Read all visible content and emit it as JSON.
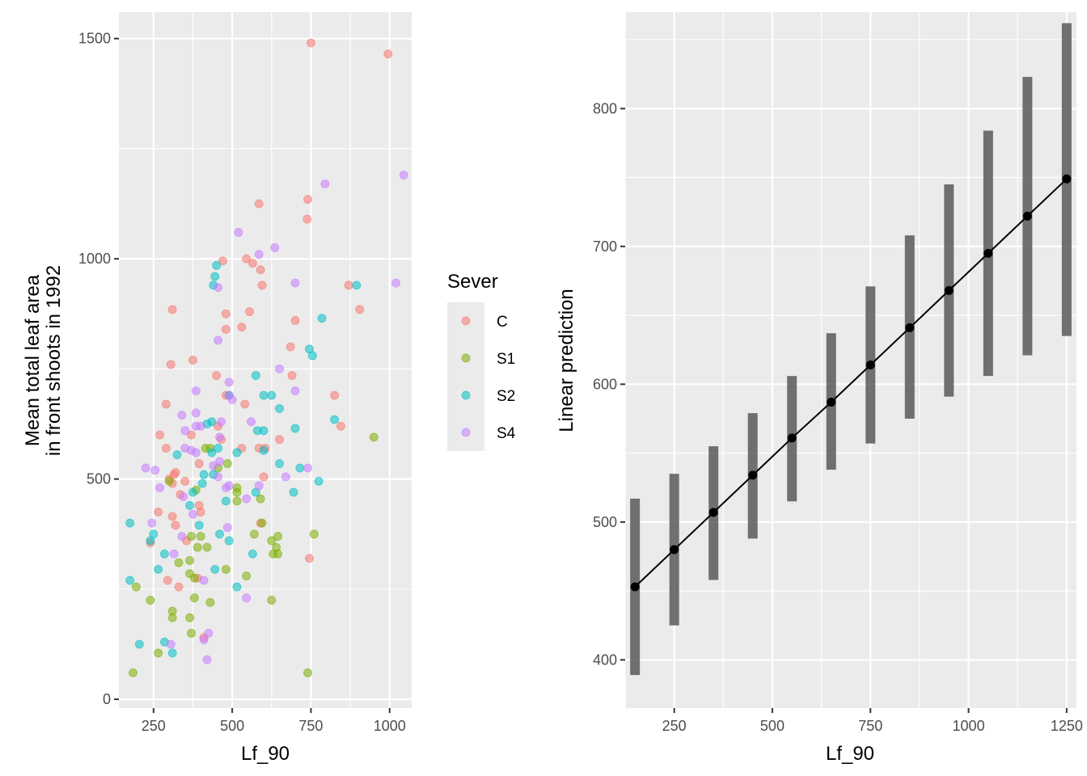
{
  "chart_data": [
    {
      "id": "scatter",
      "type": "scatter",
      "xlabel": "Lf_90",
      "ylabel_lines": [
        "Mean total leaf area",
        "in front shoots in 1992"
      ],
      "xlim": [
        140,
        1070
      ],
      "ylim": [
        -20,
        1560
      ],
      "x_ticks": [
        250,
        500,
        750,
        1000
      ],
      "x_tick_labels": [
        "250",
        "500",
        "750",
        "1000"
      ],
      "y_ticks": [
        0,
        500,
        1000,
        1500
      ],
      "y_tick_labels": [
        "0",
        "500",
        "1000",
        "1500"
      ],
      "point_alpha": 0.55,
      "legend": {
        "title": "Sever",
        "entries": [
          {
            "label": "C",
            "color": "#F8766D"
          },
          {
            "label": "S1",
            "color": "#7CAE00"
          },
          {
            "label": "S2",
            "color": "#00BFC4"
          },
          {
            "label": "S4",
            "color": "#C77CFF"
          }
        ]
      },
      "series": [
        {
          "name": "C",
          "color": "#F8766D",
          "points": [
            [
              750,
              1490
            ],
            [
              995,
              1465
            ],
            [
              740,
              1135
            ],
            [
              585,
              1125
            ],
            [
              738,
              1090
            ],
            [
              545,
              1000
            ],
            [
              565,
              990
            ],
            [
              590,
              975
            ],
            [
              470,
              995
            ],
            [
              310,
              885
            ],
            [
              555,
              880
            ],
            [
              480,
              875
            ],
            [
              595,
              940
            ],
            [
              870,
              940
            ],
            [
              905,
              885
            ],
            [
              700,
              860
            ],
            [
              480,
              840
            ],
            [
              530,
              845
            ],
            [
              685,
              800
            ],
            [
              375,
              770
            ],
            [
              305,
              760
            ],
            [
              690,
              735
            ],
            [
              450,
              735
            ],
            [
              825,
              690
            ],
            [
              480,
              690
            ],
            [
              290,
              670
            ],
            [
              540,
              670
            ],
            [
              845,
              620
            ],
            [
              455,
              620
            ],
            [
              270,
              600
            ],
            [
              370,
              600
            ],
            [
              465,
              590
            ],
            [
              650,
              590
            ],
            [
              290,
              570
            ],
            [
              530,
              570
            ],
            [
              585,
              570
            ],
            [
              605,
              570
            ],
            [
              320,
              515
            ],
            [
              315,
              510
            ],
            [
              300,
              500
            ],
            [
              350,
              495
            ],
            [
              600,
              505
            ],
            [
              335,
              465
            ],
            [
              395,
              535
            ],
            [
              310,
              490
            ],
            [
              395,
              440
            ],
            [
              265,
              425
            ],
            [
              310,
              415
            ],
            [
              400,
              425
            ],
            [
              590,
              400
            ],
            [
              320,
              395
            ],
            [
              240,
              355
            ],
            [
              355,
              360
            ],
            [
              745,
              320
            ],
            [
              295,
              270
            ],
            [
              390,
              275
            ],
            [
              410,
              140
            ],
            [
              330,
              255
            ]
          ]
        },
        {
          "name": "S1",
          "color": "#7CAE00",
          "points": [
            [
              950,
              595
            ],
            [
              485,
              535
            ],
            [
              455,
              525
            ],
            [
              415,
              570
            ],
            [
              430,
              570
            ],
            [
              300,
              495
            ],
            [
              385,
              475
            ],
            [
              515,
              480
            ],
            [
              515,
              470
            ],
            [
              590,
              455
            ],
            [
              515,
              450
            ],
            [
              370,
              370
            ],
            [
              570,
              375
            ],
            [
              400,
              370
            ],
            [
              595,
              400
            ],
            [
              645,
              370
            ],
            [
              625,
              360
            ],
            [
              640,
              345
            ],
            [
              630,
              330
            ],
            [
              645,
              330
            ],
            [
              760,
              375
            ],
            [
              420,
              345
            ],
            [
              390,
              345
            ],
            [
              330,
              310
            ],
            [
              365,
              315
            ],
            [
              365,
              285
            ],
            [
              480,
              295
            ],
            [
              380,
              275
            ],
            [
              545,
              280
            ],
            [
              195,
              255
            ],
            [
              240,
              225
            ],
            [
              310,
              200
            ],
            [
              310,
              185
            ],
            [
              380,
              230
            ],
            [
              365,
              185
            ],
            [
              370,
              150
            ],
            [
              430,
              220
            ],
            [
              265,
              105
            ],
            [
              625,
              225
            ],
            [
              185,
              60
            ],
            [
              740,
              60
            ]
          ]
        },
        {
          "name": "S2",
          "color": "#00BFC4",
          "points": [
            [
              450,
              985
            ],
            [
              440,
              940
            ],
            [
              445,
              960
            ],
            [
              895,
              940
            ],
            [
              785,
              865
            ],
            [
              745,
              795
            ],
            [
              755,
              780
            ],
            [
              575,
              735
            ],
            [
              600,
              690
            ],
            [
              625,
              690
            ],
            [
              490,
              690
            ],
            [
              650,
              660
            ],
            [
              825,
              635
            ],
            [
              580,
              610
            ],
            [
              600,
              610
            ],
            [
              700,
              615
            ],
            [
              420,
              625
            ],
            [
              435,
              630
            ],
            [
              325,
              555
            ],
            [
              455,
              570
            ],
            [
              435,
              560
            ],
            [
              515,
              560
            ],
            [
              600,
              565
            ],
            [
              410,
              510
            ],
            [
              440,
              510
            ],
            [
              715,
              525
            ],
            [
              650,
              535
            ],
            [
              775,
              495
            ],
            [
              405,
              490
            ],
            [
              375,
              470
            ],
            [
              695,
              470
            ],
            [
              575,
              470
            ],
            [
              480,
              450
            ],
            [
              365,
              440
            ],
            [
              175,
              400
            ],
            [
              395,
              395
            ],
            [
              460,
              375
            ],
            [
              250,
              375
            ],
            [
              240,
              360
            ],
            [
              490,
              360
            ],
            [
              565,
              330
            ],
            [
              285,
              330
            ],
            [
              265,
              295
            ],
            [
              445,
              295
            ],
            [
              175,
              270
            ],
            [
              515,
              255
            ],
            [
              285,
              130
            ],
            [
              205,
              125
            ],
            [
              310,
              105
            ]
          ]
        },
        {
          "name": "S4",
          "color": "#C77CFF",
          "points": [
            [
              795,
              1170
            ],
            [
              1045,
              1190
            ],
            [
              520,
              1060
            ],
            [
              585,
              1010
            ],
            [
              635,
              1025
            ],
            [
              1020,
              945
            ],
            [
              700,
              945
            ],
            [
              455,
              935
            ],
            [
              455,
              815
            ],
            [
              490,
              720
            ],
            [
              650,
              750
            ],
            [
              700,
              700
            ],
            [
              385,
              700
            ],
            [
              490,
              690
            ],
            [
              500,
              680
            ],
            [
              340,
              645
            ],
            [
              385,
              650
            ],
            [
              465,
              630
            ],
            [
              560,
              630
            ],
            [
              350,
              570
            ],
            [
              370,
              565
            ],
            [
              385,
              560
            ],
            [
              440,
              530
            ],
            [
              460,
              540
            ],
            [
              255,
              520
            ],
            [
              225,
              525
            ],
            [
              740,
              525
            ],
            [
              455,
              505
            ],
            [
              670,
              505
            ],
            [
              350,
              610
            ],
            [
              460,
              595
            ],
            [
              385,
              620
            ],
            [
              400,
              620
            ],
            [
              490,
              485
            ],
            [
              545,
              455
            ],
            [
              585,
              485
            ],
            [
              480,
              480
            ],
            [
              270,
              480
            ],
            [
              345,
              460
            ],
            [
              375,
              420
            ],
            [
              245,
              400
            ],
            [
              485,
              390
            ],
            [
              340,
              370
            ],
            [
              315,
              330
            ],
            [
              410,
              270
            ],
            [
              545,
              230
            ],
            [
              425,
              150
            ],
            [
              420,
              90
            ],
            [
              305,
              125
            ],
            [
              410,
              135
            ]
          ]
        }
      ]
    },
    {
      "id": "prediction",
      "type": "line",
      "xlabel": "Lf_90",
      "ylabel": "Linear prediction",
      "xlim": [
        125,
        1275
      ],
      "ylim": [
        365,
        870
      ],
      "x_ticks": [
        250,
        500,
        750,
        1000,
        1250
      ],
      "x_tick_labels": [
        "250",
        "500",
        "750",
        "1000",
        "1250"
      ],
      "y_ticks": [
        400,
        500,
        600,
        700,
        800
      ],
      "y_tick_labels": [
        "400",
        "500",
        "600",
        "700",
        "800"
      ],
      "x": [
        150,
        250,
        350,
        450,
        550,
        650,
        750,
        850,
        950,
        1050,
        1150,
        1250
      ],
      "y": [
        453,
        480,
        507,
        534,
        561,
        587,
        614,
        641,
        668,
        695,
        722,
        749
      ],
      "ci_low": [
        389,
        425,
        458,
        488,
        515,
        538,
        557,
        575,
        591,
        606,
        621,
        635
      ],
      "ci_high": [
        517,
        535,
        555,
        579,
        606,
        637,
        671,
        708,
        745,
        784,
        823,
        862
      ],
      "errorbar_color": "#595959",
      "line_color": "#000000"
    }
  ]
}
